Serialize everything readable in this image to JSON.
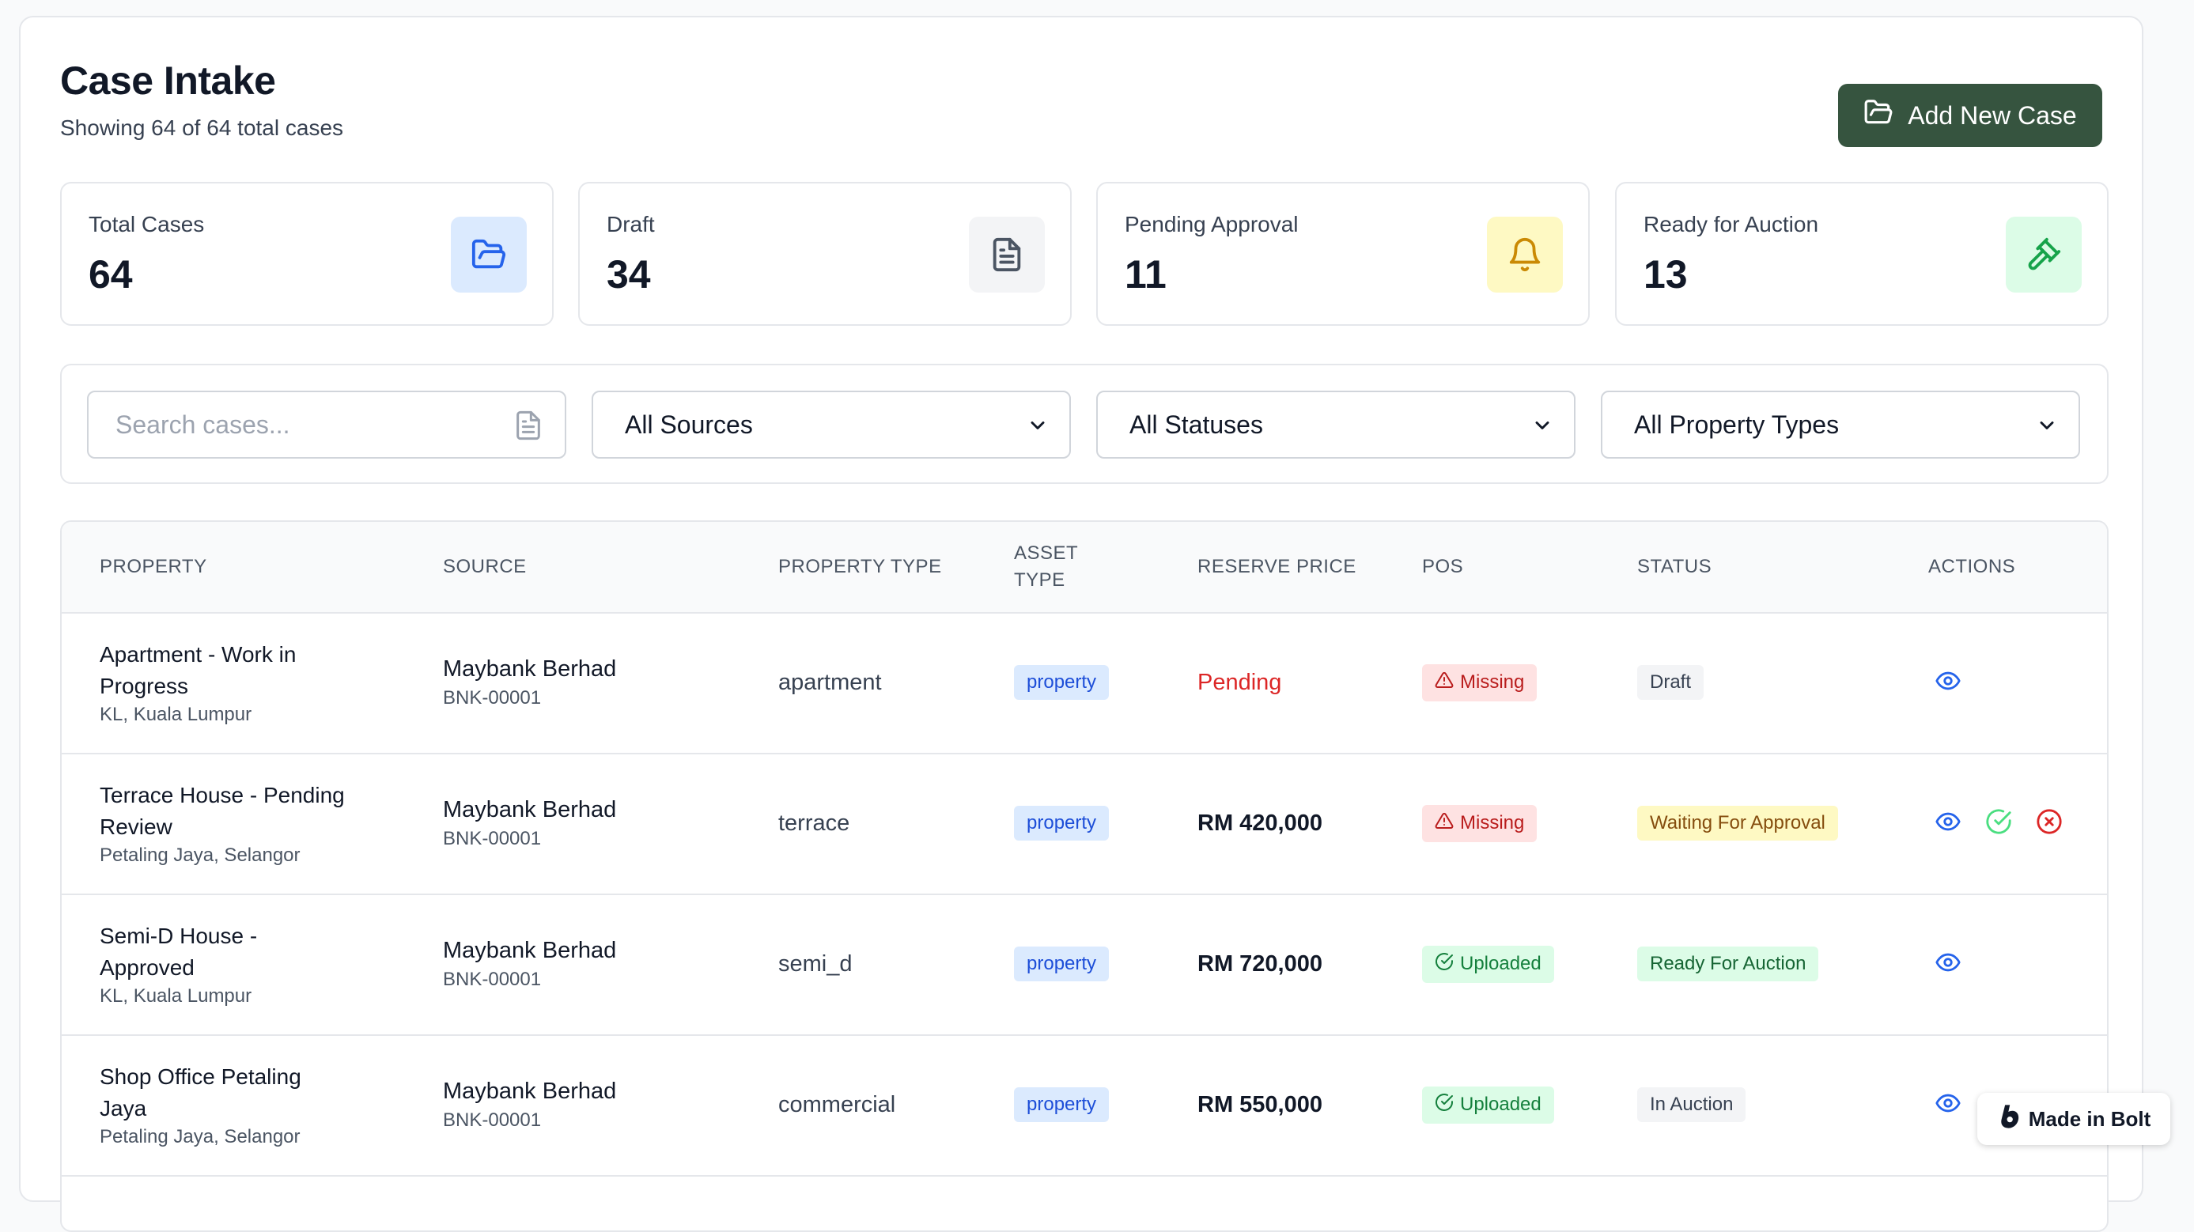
{
  "header": {
    "title": "Case Intake",
    "subtitle": "Showing 64 of 64 total cases",
    "add_button_label": "Add New Case"
  },
  "stats": [
    {
      "label": "Total Cases",
      "value": "64",
      "icon": "folder-open-icon",
      "icon_bg": "#dbeafe",
      "icon_color": "#2563eb"
    },
    {
      "label": "Draft",
      "value": "34",
      "icon": "document-icon",
      "icon_bg": "#f3f4f6",
      "icon_color": "#4b5563"
    },
    {
      "label": "Pending Approval",
      "value": "11",
      "icon": "bell-icon",
      "icon_bg": "#fef9c3",
      "icon_color": "#ca8a04"
    },
    {
      "label": "Ready for Auction",
      "value": "13",
      "icon": "gavel-icon",
      "icon_bg": "#dcfce7",
      "icon_color": "#16a34a"
    }
  ],
  "filters": {
    "search_placeholder": "Search cases...",
    "source_selected": "All Sources",
    "status_selected": "All Statuses",
    "property_type_selected": "All Property Types"
  },
  "table": {
    "columns": [
      "PROPERTY",
      "SOURCE",
      "PROPERTY TYPE",
      "ASSET TYPE",
      "RESERVE PRICE",
      "POS",
      "STATUS",
      "ACTIONS"
    ],
    "rows": [
      {
        "name": "Apartment - Work in Progress",
        "location": "KL, Kuala Lumpur",
        "source": "Maybank Berhad",
        "source_code": "BNK-00001",
        "property_type": "apartment",
        "asset_type": "property",
        "reserve_price": "Pending",
        "pos": "Missing",
        "status": "Draft"
      },
      {
        "name": "Terrace House - Pending Review",
        "location": "Petaling Jaya, Selangor",
        "source": "Maybank Berhad",
        "source_code": "BNK-00001",
        "property_type": "terrace",
        "asset_type": "property",
        "reserve_price": "RM 420,000",
        "pos": "Missing",
        "status": "Waiting For Approval"
      },
      {
        "name": "Semi-D House - Approved",
        "location": "KL, Kuala Lumpur",
        "source": "Maybank Berhad",
        "source_code": "BNK-00001",
        "property_type": "semi_d",
        "asset_type": "property",
        "reserve_price": "RM 720,000",
        "pos": "Uploaded",
        "status": "Ready For Auction"
      },
      {
        "name": "Shop Office Petaling Jaya",
        "location": "Petaling Jaya, Selangor",
        "source": "Maybank Berhad",
        "source_code": "BNK-00001",
        "property_type": "commercial",
        "asset_type": "property",
        "reserve_price": "RM 550,000",
        "pos": "Uploaded",
        "status": "In Auction"
      }
    ]
  },
  "badge": {
    "label": "Made in Bolt"
  }
}
